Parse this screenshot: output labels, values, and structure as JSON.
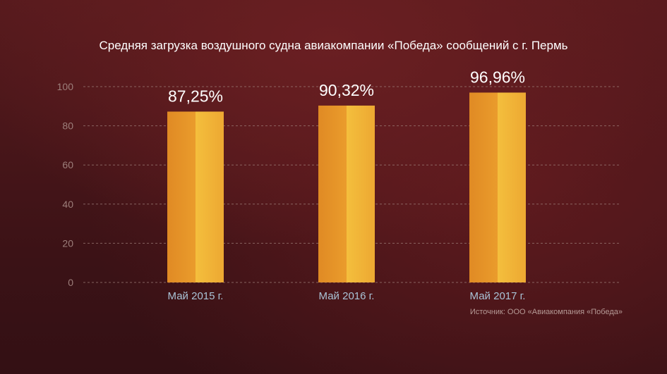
{
  "chart_data": {
    "type": "bar",
    "title": "Средняя загрузка воздушного судна авиакомпании «Победа» сообщений с г. Пермь",
    "categories": [
      "Май 2015 г.",
      "Май 2016 г.",
      "Май 2017 г."
    ],
    "values": [
      87.25,
      90.32,
      96.96
    ],
    "value_labels": [
      "87,25%",
      "90,32%",
      "96,96%"
    ],
    "ylim": [
      0,
      100
    ],
    "yticks": [
      0,
      20,
      40,
      60,
      80,
      100
    ],
    "xlabel": "",
    "ylabel": "",
    "grid": true,
    "source": "Источник: ООО «Авиакомпания «Победа»"
  },
  "colors": {
    "background": "#3a1216",
    "bar_left": "#e8952a",
    "bar_right": "#f1bb3a",
    "grid": "#9c7d78",
    "tick_label": "#9d7f7b",
    "category_label": "#a9c3d6",
    "value_label": "#ffffff",
    "title": "#ffffff"
  }
}
